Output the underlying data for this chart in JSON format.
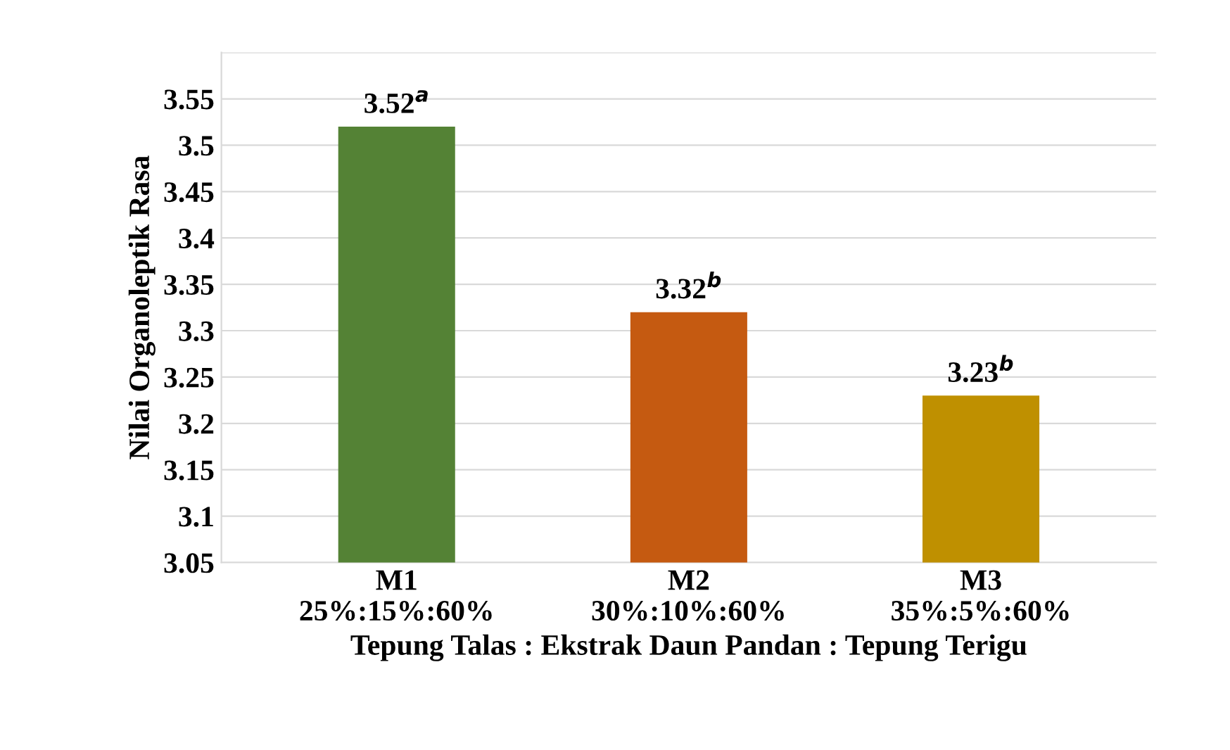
{
  "chart_data": {
    "type": "bar",
    "categories": [
      "M1\n25%:15%:60%",
      "M2\n30%:10%:60%",
      "M3\n35%:5%:60%"
    ],
    "values": [
      3.52,
      3.32,
      3.23
    ],
    "colors": [
      "#548235",
      "#c55a11",
      "#bf9000"
    ],
    "value_labels": [
      "3.52$^{a}$",
      "3.32$^{b}$",
      "3.23$^{b}$"
    ],
    "xlabel": "Tepung Talas : Ekstrak Daun Pandan : Tepung Terigu",
    "ylabel": "Nilai Organoleptik Rasa",
    "ylim": [
      3.05,
      3.6
    ],
    "yticks": [
      3.05,
      3.1,
      3.15,
      3.2,
      3.25,
      3.3,
      3.35,
      3.4,
      3.45,
      3.5,
      3.55,
      {
        "value": 3.6,
        "label": null
      }
    ],
    "grid": "y"
  }
}
